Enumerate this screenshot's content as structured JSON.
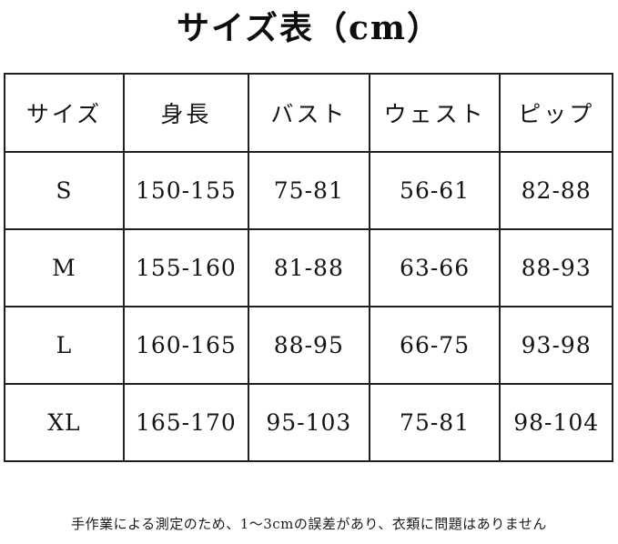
{
  "title": "サイズ表（cm）",
  "table": {
    "headers": [
      "サイズ",
      "身長",
      "バスト",
      "ウェスト",
      "ピップ"
    ],
    "rows": [
      [
        "S",
        "150-155",
        "75-81",
        "56-61",
        "82-88"
      ],
      [
        "M",
        "155-160",
        "81-88",
        "63-66",
        "88-93"
      ],
      [
        "L",
        "160-165",
        "88-95",
        "66-75",
        "93-98"
      ],
      [
        "XL",
        "165-170",
        "95-103",
        "75-81",
        "98-104"
      ]
    ]
  },
  "footnote": "手作業による測定のため、1〜3cmの誤差があり、衣類に問題はありません"
}
